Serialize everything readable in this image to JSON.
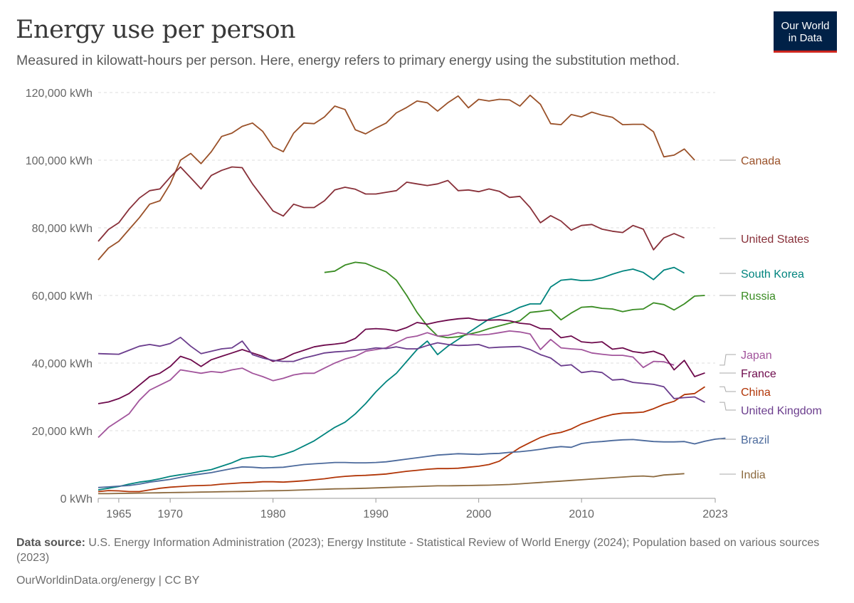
{
  "header": {
    "title": "Energy use per person",
    "subtitle": "Measured in kilowatt-hours per person. Here, energy refers to primary energy using the substitution method."
  },
  "logo": {
    "line1": "Our World",
    "line2": "in Data"
  },
  "footer": {
    "source_label": "Data source:",
    "source_text": "U.S. Energy Information Administration (2023); Energy Institute - Statistical Review of World Energy (2024); Population based on various sources (2023)",
    "credit": "OurWorldinData.org/energy | CC BY"
  },
  "chart_data": {
    "type": "line",
    "xlim": [
      1963,
      2023
    ],
    "ylim": [
      0,
      120000
    ],
    "x_ticks": [
      {
        "value": 1965,
        "label": "1965"
      },
      {
        "value": 1970,
        "label": "1970"
      },
      {
        "value": 1980,
        "label": "1980"
      },
      {
        "value": 1990,
        "label": "1990"
      },
      {
        "value": 2000,
        "label": "2000"
      },
      {
        "value": 2010,
        "label": "2010"
      },
      {
        "value": 2023,
        "label": "2023"
      }
    ],
    "y_ticks": [
      {
        "value": 0,
        "label": "0 kWh"
      },
      {
        "value": 20000,
        "label": "20,000 kWh"
      },
      {
        "value": 40000,
        "label": "40,000 kWh"
      },
      {
        "value": 60000,
        "label": "60,000 kWh"
      },
      {
        "value": 80000,
        "label": "80,000 kWh"
      },
      {
        "value": 100000,
        "label": "100,000 kWh"
      },
      {
        "value": 120000,
        "label": "120,000 kWh"
      }
    ],
    "grid": true,
    "legend": "line-end labels",
    "series": [
      {
        "name": "Canada",
        "color": "#9a5129",
        "label_value": 99500,
        "start": 1963,
        "values": [
          70500,
          74000,
          76000,
          79500,
          83000,
          87000,
          88000,
          93000,
          100000,
          102000,
          99000,
          102500,
          107000,
          108000,
          110000,
          111000,
          108500,
          104000,
          102500,
          108000,
          111000,
          110800,
          112800,
          116000,
          115000,
          109000,
          107800,
          109500,
          111000,
          114000,
          115600,
          117500,
          117000,
          114500,
          117000,
          119000,
          115500,
          118000,
          117500,
          118000,
          117800,
          116000,
          119200,
          116500,
          110800,
          110500,
          113500,
          112800,
          114200,
          113300,
          112700,
          110500,
          110600,
          110600,
          108400,
          101000,
          101500,
          103300,
          100000
        ]
      },
      {
        "name": "United States",
        "color": "#883039",
        "label_value": 76900,
        "start": 1963,
        "values": [
          76000,
          79500,
          81500,
          85500,
          88800,
          91000,
          91500,
          95000,
          98000,
          94800,
          91500,
          95500,
          97000,
          98000,
          97800,
          93000,
          89000,
          85000,
          83500,
          87000,
          86000,
          86000,
          88000,
          91200,
          92000,
          91400,
          90000,
          90000,
          90500,
          91000,
          93500,
          93000,
          92500,
          93000,
          94000,
          91000,
          91200,
          90700,
          91500,
          90800,
          89000,
          89300,
          86000,
          81500,
          83600,
          82000,
          79300,
          80700,
          81000,
          79600,
          79000,
          78600,
          80700,
          79600,
          73500,
          77000,
          78300,
          77000
        ]
      },
      {
        "name": "South Korea",
        "color": "#00847e",
        "label_value": 66600,
        "start": 1963,
        "values": [
          2500,
          3000,
          3500,
          4200,
          4800,
          5200,
          5800,
          6500,
          7000,
          7400,
          8000,
          8500,
          9500,
          10500,
          11800,
          12200,
          12500,
          12200,
          13000,
          14000,
          15500,
          17000,
          19000,
          21000,
          22500,
          25000,
          28000,
          31500,
          34500,
          37000,
          40500,
          44000,
          46500,
          42500,
          45000,
          47000,
          49000,
          51000,
          53000,
          54000,
          55000,
          56500,
          57500,
          57500,
          62500,
          64500,
          64800,
          64400,
          64500,
          65200,
          66300,
          67200,
          67800,
          66800,
          64700,
          67500,
          68300,
          66600
        ]
      },
      {
        "name": "Russia",
        "color": "#3a8c23",
        "label_value": 60000,
        "start": 1985,
        "values": [
          66800,
          67200,
          69000,
          69800,
          69500,
          68200,
          67000,
          64500,
          60000,
          55000,
          51000,
          48000,
          47500,
          47800,
          48500,
          49200,
          50200,
          51000,
          51800,
          52500,
          55000,
          55300,
          55700,
          52800,
          54800,
          56500,
          56700,
          56200,
          56000,
          55200,
          55800,
          56000,
          57800,
          57300,
          55700,
          57500,
          59800,
          60000
        ]
      },
      {
        "name": "Japan",
        "color": "#a2559c",
        "label_value": 40800,
        "start": 1963,
        "values": [
          18000,
          21000,
          23000,
          25000,
          29000,
          32000,
          33500,
          35000,
          38000,
          37500,
          37000,
          37500,
          37200,
          38000,
          38500,
          37000,
          36000,
          34800,
          35500,
          36500,
          37000,
          37000,
          38500,
          40000,
          41200,
          42000,
          43500,
          44000,
          44500,
          46000,
          47500,
          48000,
          49000,
          48000,
          48200,
          49000,
          48500,
          48300,
          48500,
          49000,
          49500,
          49200,
          48600,
          44000,
          47000,
          44500,
          44200,
          44000,
          43000,
          42600,
          42300,
          42300,
          41800,
          38700,
          40500,
          40400,
          39400
        ]
      },
      {
        "name": "France",
        "color": "#6d0a4c",
        "label_value": 37100,
        "start": 1963,
        "values": [
          28000,
          28500,
          29500,
          31000,
          33500,
          36000,
          37000,
          39000,
          42000,
          41000,
          39000,
          41000,
          42000,
          43000,
          44000,
          43000,
          42000,
          40500,
          41300,
          42800,
          43800,
          44800,
          45300,
          45600,
          46000,
          47300,
          50000,
          50200,
          50000,
          49500,
          50500,
          52000,
          51500,
          52200,
          52700,
          53100,
          53300,
          52700,
          52700,
          52800,
          52500,
          51800,
          51500,
          50200,
          50100,
          47500,
          48000,
          46300,
          46000,
          46300,
          44100,
          44500,
          43400,
          43000,
          43500,
          42300,
          38000,
          40800,
          36000,
          37100
        ]
      },
      {
        "name": "China",
        "color": "#b13507",
        "label_value": 33000,
        "start": 1963,
        "values": [
          2000,
          2300,
          2200,
          2000,
          2000,
          2500,
          3000,
          3300,
          3500,
          3700,
          3800,
          3900,
          4200,
          4400,
          4600,
          4700,
          4900,
          4900,
          4800,
          5000,
          5200,
          5500,
          5800,
          6200,
          6500,
          6700,
          6800,
          7000,
          7200,
          7600,
          8000,
          8300,
          8600,
          8800,
          8800,
          8900,
          9200,
          9500,
          10000,
          11000,
          13000,
          15000,
          16500,
          18000,
          19000,
          19500,
          20500,
          22000,
          23000,
          24000,
          24800,
          25200,
          25300,
          25500,
          26500,
          27800,
          28700,
          30700,
          31000,
          33000
        ]
      },
      {
        "name": "United Kingdom",
        "color": "#6b3d8d",
        "label_value": 28000,
        "start": 1963,
        "values": [
          42800,
          42700,
          42600,
          43800,
          45000,
          45500,
          45000,
          45800,
          47600,
          45000,
          42800,
          43500,
          44200,
          44500,
          46500,
          42500,
          41500,
          40800,
          40500,
          40500,
          41500,
          42200,
          43000,
          43300,
          43500,
          43800,
          44000,
          44500,
          44300,
          44800,
          44200,
          44200,
          45200,
          46000,
          45500,
          45200,
          45300,
          45500,
          44500,
          44700,
          44800,
          44900,
          44000,
          42500,
          41500,
          39200,
          39500,
          37200,
          37600,
          37200,
          35000,
          35200,
          34300,
          34000,
          33700,
          33000,
          29500,
          29800,
          30000,
          28400
        ]
      },
      {
        "name": "Brazil",
        "color": "#4c6a9c",
        "label_value": 17800,
        "start": 1963,
        "values": [
          3200,
          3400,
          3600,
          3800,
          4200,
          4800,
          5200,
          5600,
          6200,
          6800,
          7200,
          7600,
          8200,
          8800,
          9300,
          9200,
          9000,
          9100,
          9200,
          9600,
          10000,
          10200,
          10400,
          10600,
          10600,
          10500,
          10500,
          10600,
          10800,
          11200,
          11600,
          12000,
          12400,
          12800,
          13000,
          13200,
          13100,
          13000,
          13200,
          13300,
          13600,
          13800,
          14100,
          14500,
          15000,
          15300,
          15100,
          16200,
          16600,
          16800,
          17100,
          17300,
          17400,
          17100,
          16800,
          16700,
          16700,
          16800,
          16100,
          16900,
          17500,
          17800
        ]
      },
      {
        "name": "India",
        "color": "#8c6a3f",
        "label_value": 7300,
        "start": 1963,
        "values": [
          1400,
          1400,
          1450,
          1500,
          1550,
          1600,
          1650,
          1700,
          1750,
          1800,
          1850,
          1900,
          1950,
          2000,
          2050,
          2100,
          2200,
          2250,
          2300,
          2400,
          2500,
          2600,
          2700,
          2800,
          2850,
          2900,
          3000,
          3100,
          3200,
          3300,
          3400,
          3500,
          3600,
          3700,
          3700,
          3750,
          3800,
          3850,
          3900,
          4000,
          4100,
          4300,
          4500,
          4700,
          4900,
          5100,
          5300,
          5500,
          5700,
          5900,
          6100,
          6300,
          6500,
          6600,
          6400,
          6900,
          7100,
          7300
        ]
      }
    ]
  }
}
